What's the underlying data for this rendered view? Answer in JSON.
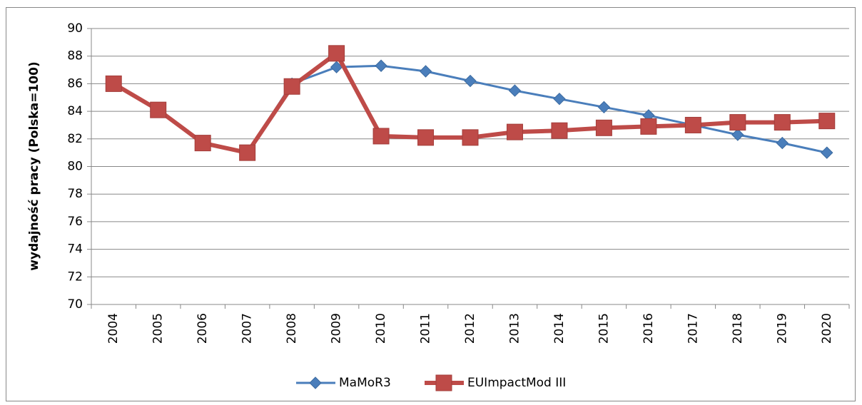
{
  "chart_data": {
    "type": "line",
    "ylabel": "wydajność pracy (Polska=100)",
    "categories": [
      "2004",
      "2005",
      "2006",
      "2007",
      "2008",
      "2009",
      "2010",
      "2011",
      "2012",
      "2013",
      "2014",
      "2015",
      "2016",
      "2017",
      "2018",
      "2019",
      "2020"
    ],
    "series": [
      {
        "name": "MaMoR3",
        "color": "#4a7ebb",
        "marker": "diamond",
        "values": [
          86.0,
          84.1,
          81.7,
          81.0,
          86.0,
          87.2,
          87.3,
          86.9,
          86.2,
          85.5,
          84.9,
          84.3,
          83.7,
          83.0,
          82.3,
          81.7,
          81.0
        ]
      },
      {
        "name": "EUImpactMod III",
        "color": "#be4b48",
        "marker": "square",
        "values": [
          86.0,
          84.1,
          81.7,
          81.0,
          85.8,
          88.2,
          82.2,
          82.1,
          82.1,
          82.5,
          82.6,
          82.8,
          82.9,
          83.0,
          83.2,
          83.2,
          83.3
        ]
      }
    ],
    "ylim": [
      70,
      90
    ],
    "yticks": [
      70,
      72,
      74,
      76,
      78,
      80,
      82,
      84,
      86,
      88,
      90
    ],
    "grid": true,
    "legend": "bottom"
  }
}
